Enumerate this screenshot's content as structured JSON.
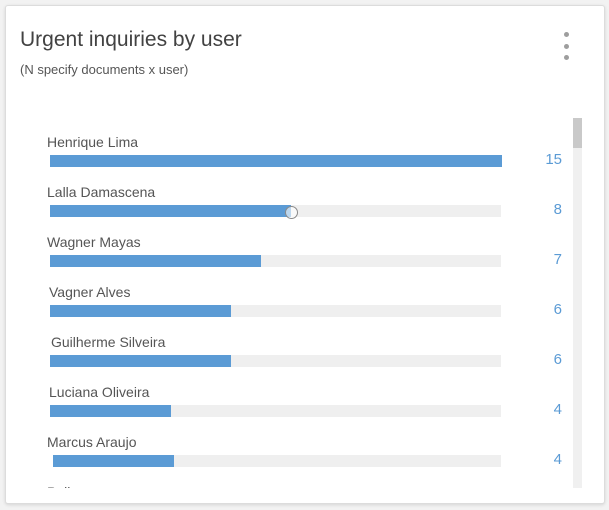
{
  "card": {
    "title": "Urgent inquiries by user",
    "subtitle": "(N specify documents x user)",
    "menu_icon": "more-vertical-icon"
  },
  "colors": {
    "bar": "#5b9bd5",
    "track": "#efefef",
    "value_text": "#5b9bd5"
  },
  "chart_data": {
    "type": "bar",
    "orientation": "horizontal",
    "title": "Urgent inquiries by user",
    "subtitle": "(N specify documents x user)",
    "xlim": [
      0,
      15
    ],
    "categories": [
      "Henrique Lima",
      "Lalla Damascena",
      "Wagner Mayas",
      "Vagner Alves",
      "Guilherme Silveira",
      "Luciana Oliveira",
      "Marcus Araujo",
      "Poll"
    ],
    "values": [
      15,
      8,
      7,
      6,
      6,
      4,
      4,
      0
    ],
    "value_labels": [
      "15",
      "8",
      "7",
      "6",
      "6",
      "4",
      "4",
      ""
    ],
    "hover_index": 1
  }
}
